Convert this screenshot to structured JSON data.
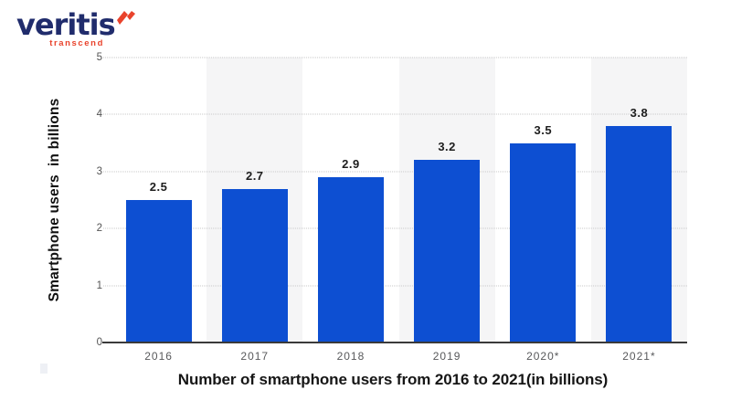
{
  "logo": {
    "brand": "veritis",
    "tagline": "transcend",
    "brand_color": "#202c6c",
    "accent_color": "#e9432c"
  },
  "chart_data": {
    "type": "bar",
    "title": "Number of smartphone users from 2016 to 2021(in billions)",
    "ylabel": "Smartphone users  in billions",
    "xlabel": "",
    "categories": [
      "2016",
      "2017",
      "2018",
      "2019",
      "2020*",
      "2021*"
    ],
    "values": [
      2.5,
      2.7,
      2.9,
      3.2,
      3.5,
      3.8
    ],
    "value_labels": [
      "2.5",
      "2.7",
      "2.9",
      "3.2",
      "3.5",
      "3.8"
    ],
    "ylim": [
      0,
      5
    ],
    "yticks": [
      0,
      1,
      2,
      3,
      4,
      5
    ],
    "grid": "horizontal-dotted",
    "legend": "none",
    "bar_color": "#0d4fd2",
    "stripe_color": "#f5f5f6",
    "striped_indices": [
      1,
      3,
      5
    ],
    "axis_color": "#3a3a3a"
  }
}
